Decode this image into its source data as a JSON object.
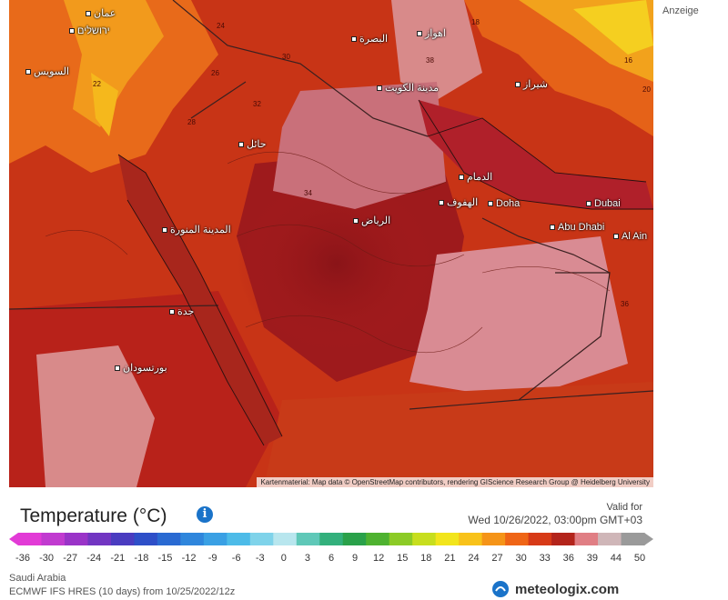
{
  "ad_label": "Anzeige",
  "legend": {
    "title": "Temperature",
    "unit": "(°C)",
    "info_icon": "info-icon",
    "ticks": [
      "-36",
      "-30",
      "-27",
      "-24",
      "-21",
      "-18",
      "-15",
      "-12",
      "-9",
      "-6",
      "-3",
      "0",
      "3",
      "6",
      "9",
      "12",
      "15",
      "18",
      "21",
      "24",
      "27",
      "30",
      "33",
      "36",
      "39",
      "44",
      "50"
    ],
    "colors": [
      "#e23bd6",
      "#c13bd0",
      "#9a34c8",
      "#7236c2",
      "#4a3cc0",
      "#2e4fc8",
      "#2a6ad2",
      "#2f86dc",
      "#3aa0e4",
      "#4dbbe8",
      "#7fd3ea",
      "#b8e6ee",
      "#5fc8b8",
      "#33b07c",
      "#2aa14a",
      "#4eb230",
      "#8ccb26",
      "#c7de1e",
      "#f2e51c",
      "#f8c21a",
      "#f59418",
      "#ef6516",
      "#d73a17",
      "#b3241b",
      "#e07e84",
      "#cfb6b8",
      "#9a9a9a"
    ]
  },
  "valid": {
    "label": "Valid for",
    "date": "Wed 10/26/2022, 03:00pm GMT+03"
  },
  "footer": {
    "region": "Saudi Arabia",
    "model": "ECMWF IFS HRES (10 days) from 10/25/2022/12z",
    "brand": "meteologix.com",
    "brand_icon": "meteologix-logo-icon",
    "ecmwf_label": "ECMWF"
  },
  "map": {
    "attribution": "Kartenmaterial: Map data © OpenStreetMap contributors, rendering GIScience Research Group @ Heidelberg University",
    "cities": [
      {
        "id": "amman",
        "name": "عمان"
      },
      {
        "id": "jerusalem",
        "name": "ירושלים"
      },
      {
        "id": "suez",
        "name": "السويس"
      },
      {
        "id": "basra",
        "name": "البصرة"
      },
      {
        "id": "ahvaz",
        "name": "اهواز"
      },
      {
        "id": "kuwait",
        "name": "مدينة الكويت"
      },
      {
        "id": "shiraz",
        "name": "شيراز"
      },
      {
        "id": "hail",
        "name": "حائل"
      },
      {
        "id": "dammam",
        "name": "الدمام"
      },
      {
        "id": "hofuf",
        "name": "الهفوف"
      },
      {
        "id": "doha",
        "name": "Doha"
      },
      {
        "id": "dubai",
        "name": "Dubai"
      },
      {
        "id": "abudhabi",
        "name": "Abu Dhabi"
      },
      {
        "id": "alain",
        "name": "Al Ain"
      },
      {
        "id": "medina",
        "name": "المدينة المنورة"
      },
      {
        "id": "riyadh",
        "name": "الرياض"
      },
      {
        "id": "jeddah",
        "name": "جدة"
      },
      {
        "id": "portsudan",
        "name": "بورتسودان"
      }
    ],
    "isotherm_labels": [
      "24",
      "22",
      "26",
      "28",
      "30",
      "32",
      "34",
      "36",
      "38",
      "18",
      "20",
      "16"
    ]
  }
}
